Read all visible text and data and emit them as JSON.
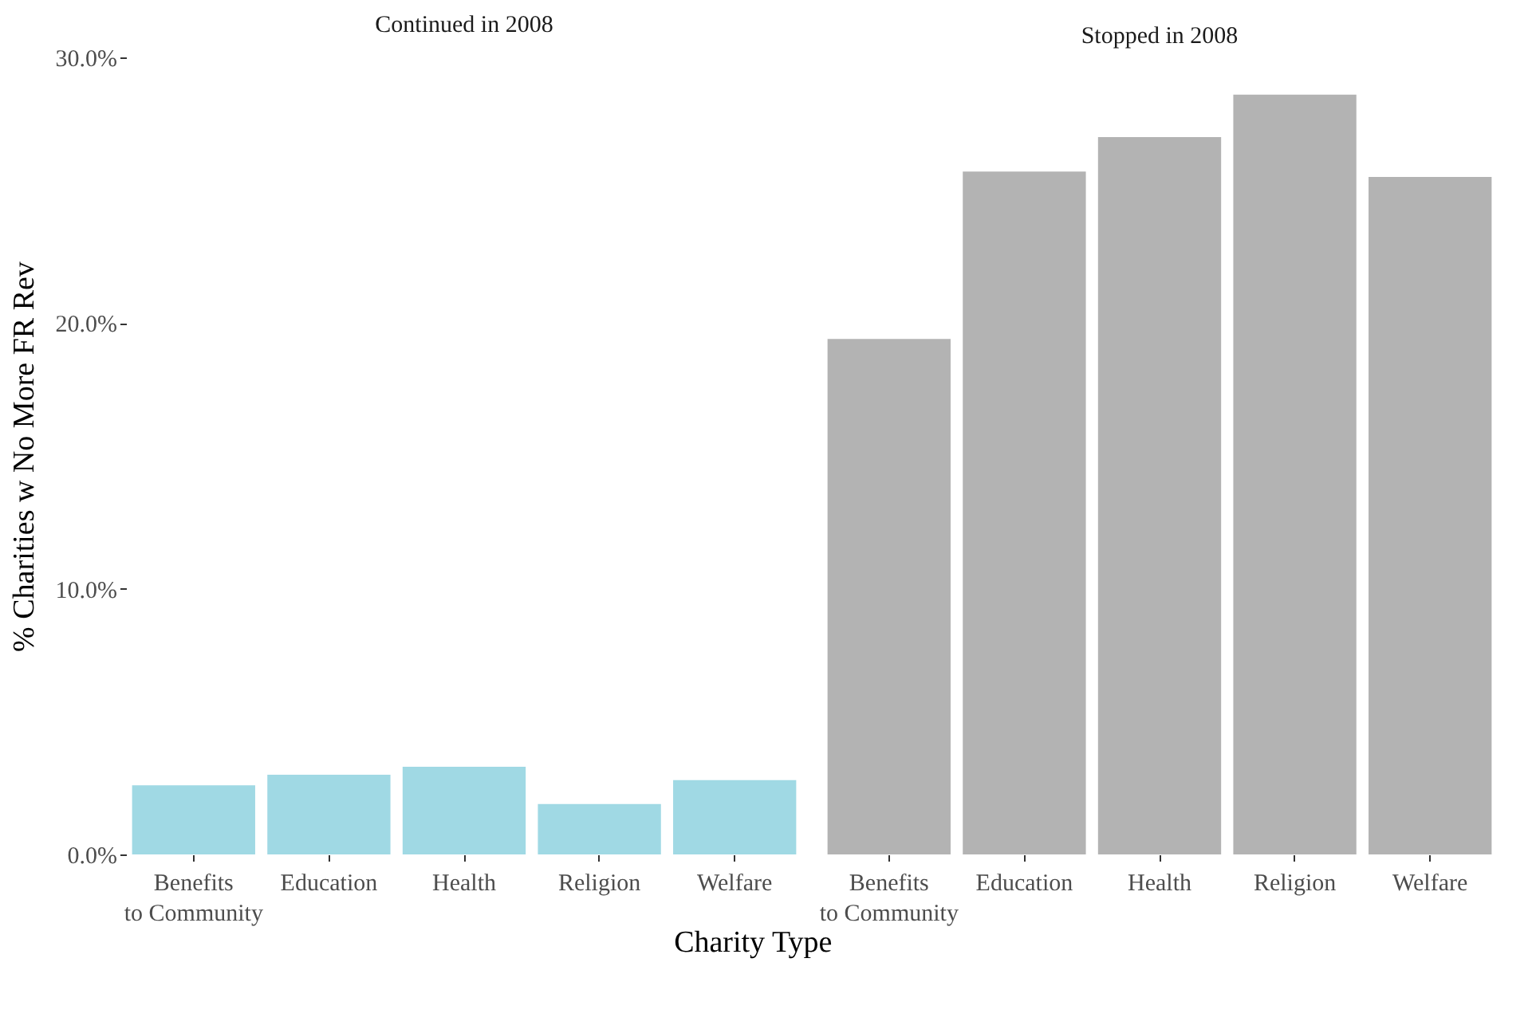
{
  "chart_data": [
    {
      "type": "bar",
      "title": "Continued in 2008",
      "xlabel": "Charity Type",
      "ylabel": "% Charities w No More FR Rev",
      "categories": [
        "Benefits\nto Community",
        "Education",
        "Health",
        "Religion",
        "Welfare"
      ],
      "values": [
        2.6,
        3.0,
        3.3,
        1.9,
        2.8
      ],
      "color": "#a0d9e4",
      "ylim": [
        0,
        30
      ],
      "yticks": [
        {
          "value": 0,
          "label": "0.0%"
        },
        {
          "value": 10,
          "label": "10.0%"
        },
        {
          "value": 20,
          "label": "20.0%"
        },
        {
          "value": 30,
          "label": "30.0%"
        }
      ],
      "grid": false
    },
    {
      "type": "bar",
      "title": "Stopped in 2008",
      "categories": [
        "Benefits\nto Community",
        "Education",
        "Health",
        "Religion",
        "Welfare"
      ],
      "values": [
        19.4,
        25.7,
        27.0,
        28.6,
        25.5
      ],
      "color": "#b3b3b3",
      "ylim": [
        0,
        30
      ],
      "grid": false,
      "tick_labels": "x"
    }
  ]
}
